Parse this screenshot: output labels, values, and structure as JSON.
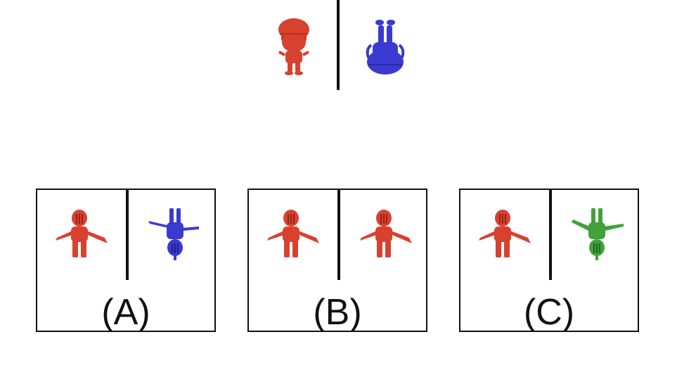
{
  "prompt": {
    "left_figure": "red-girl-hat-figure",
    "right_figure": "blue-knight-figure-inverted"
  },
  "options": [
    {
      "label": "(A)",
      "left_figure": "red-knight-tpose-figure",
      "right_figure": "blue-knight-inverted-figure"
    },
    {
      "label": "(B)",
      "left_figure": "red-knight-tpose-figure",
      "right_figure": "red-knight-tpose-figure"
    },
    {
      "label": "(C)",
      "left_figure": "red-knight-tpose-figure",
      "right_figure": "green-knight-inverted-figure"
    }
  ],
  "colors": {
    "red": "#d9412f",
    "blue": "#3a3ad0",
    "green": "#3fa23a",
    "line": "#111111"
  }
}
